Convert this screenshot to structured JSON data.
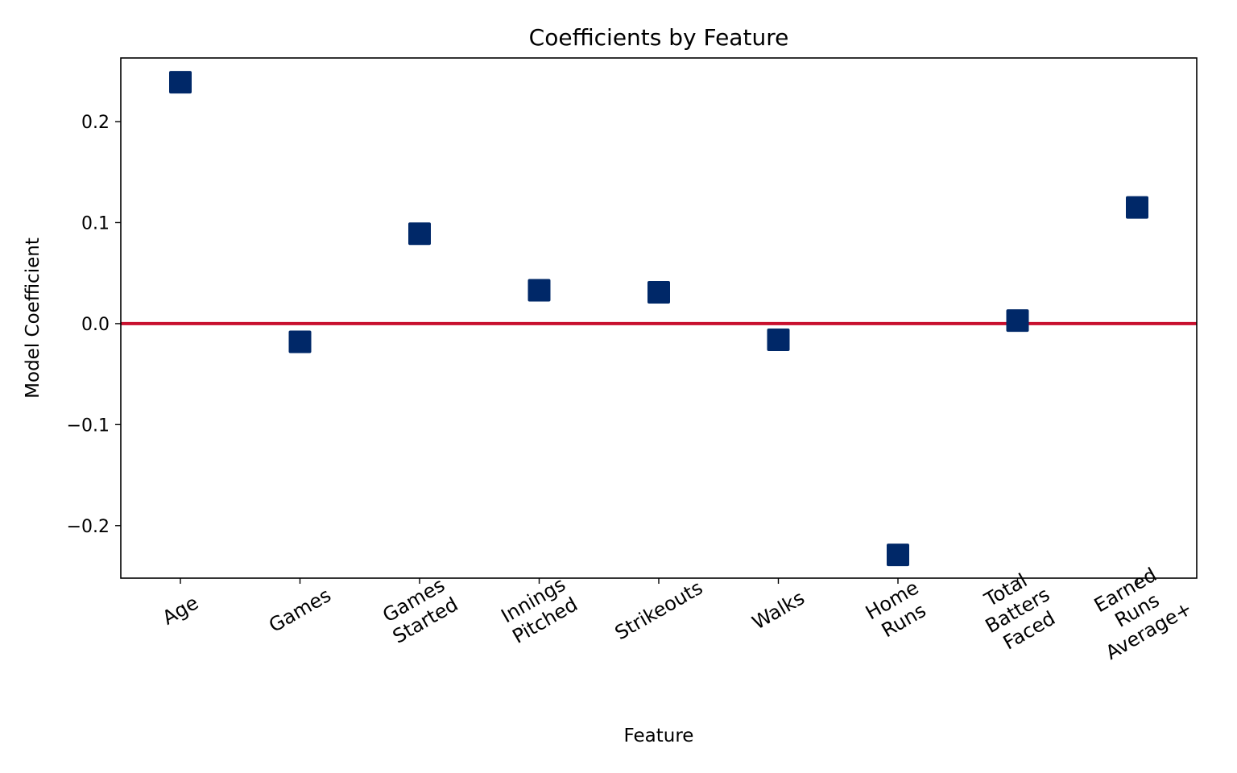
{
  "chart_data": {
    "type": "scatter",
    "title": "Coefficients by Feature",
    "xlabel": "Feature",
    "ylabel": "Model Coefficient",
    "categories": [
      [
        "Age"
      ],
      [
        "Games"
      ],
      [
        "Games",
        "Started"
      ],
      [
        "Innings",
        "Pitched"
      ],
      [
        "Strikeouts"
      ],
      [
        "Walks"
      ],
      [
        "Home",
        "Runs"
      ],
      [
        "Total",
        "Batters",
        "Faced"
      ],
      [
        "Earned",
        "Runs",
        "Average+"
      ]
    ],
    "values": [
      0.239,
      -0.018,
      0.089,
      0.033,
      0.031,
      -0.016,
      -0.229,
      0.003,
      0.115
    ],
    "yticks": [
      -0.2,
      -0.1,
      0.0,
      0.1,
      0.2
    ],
    "ytick_labels": [
      "−0.2",
      "−0.1",
      "0.0",
      "0.1",
      "0.2"
    ],
    "ylim": [
      -0.252,
      0.263
    ],
    "reference_line": {
      "y": 0.0,
      "color": "#c8102e"
    },
    "marker": {
      "shape": "square",
      "color": "#002868"
    },
    "grid": false,
    "xtick_rotation": "30deg"
  }
}
